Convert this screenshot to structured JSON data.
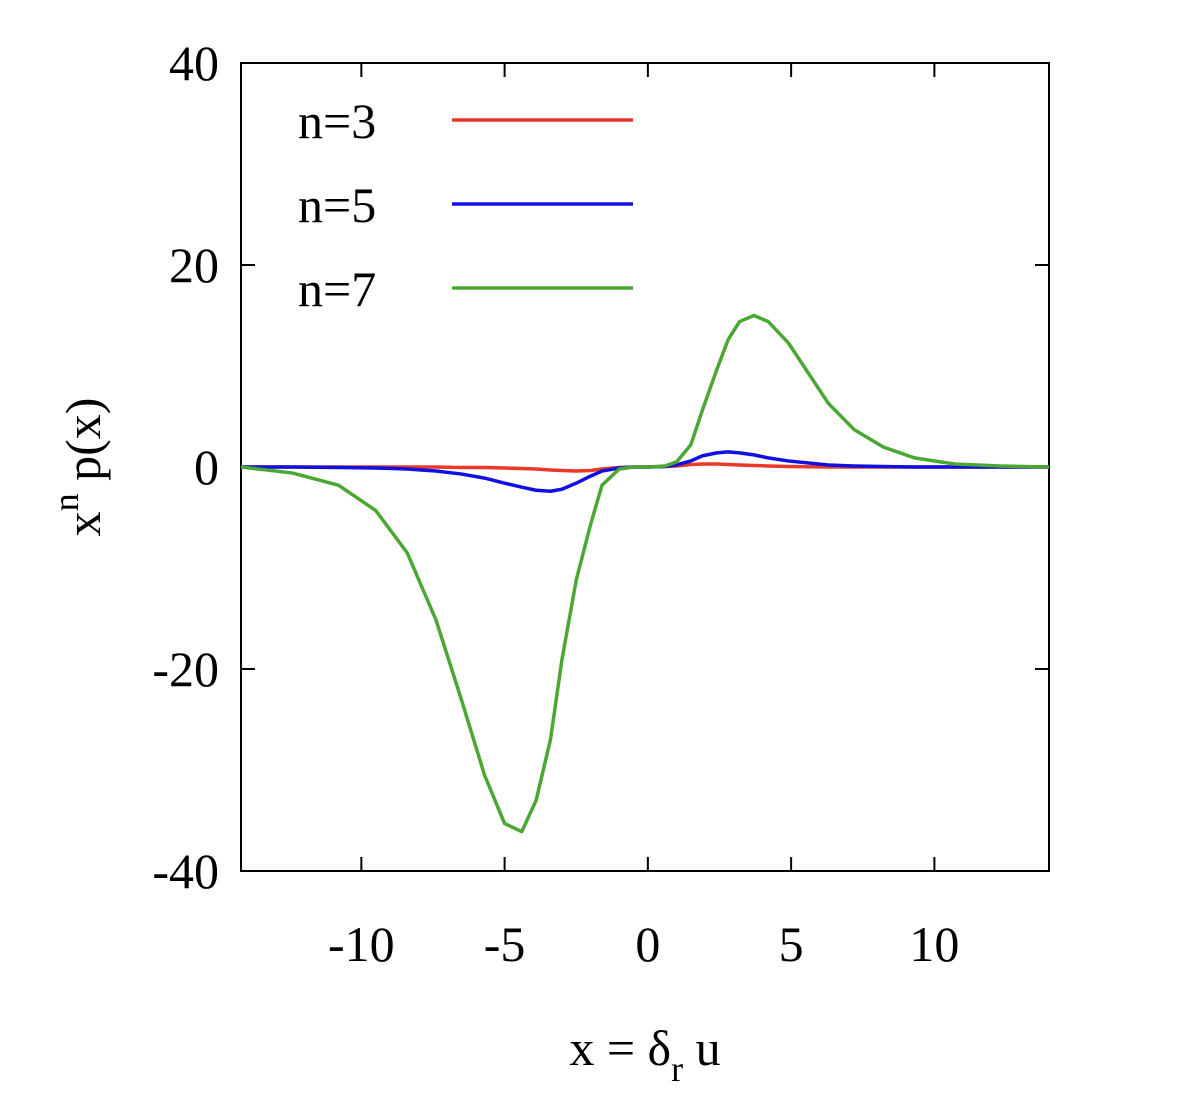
{
  "chart_data": {
    "type": "line",
    "xlabel": [
      {
        "text": "x = δ"
      },
      {
        "text": "r",
        "shift": "sub"
      },
      {
        "text": " u"
      }
    ],
    "ylabel": [
      {
        "text": "x"
      },
      {
        "text": "n",
        "shift": "super"
      },
      {
        "text": " p(x)"
      }
    ],
    "x": [
      -14.2,
      -12.4,
      -10.8,
      -9.5,
      -8.4,
      -7.4,
      -6.5,
      -5.7,
      -5.0,
      -4.4,
      -3.9,
      -3.4,
      -3.0,
      -2.5,
      -2.0,
      -1.6,
      -1.0,
      -0.5,
      0,
      0.6,
      1.0,
      1.5,
      1.9,
      2.4,
      2.8,
      3.2,
      3.7,
      4.2,
      4.9,
      6.3,
      7.2,
      8.2,
      9.3,
      10.7,
      12.3,
      14
    ],
    "series": [
      {
        "name": "n=3",
        "color": "#e8392a",
        "values": [
          0,
          0,
          0,
          0,
          0,
          0,
          -0.05,
          -0.05,
          -0.1,
          -0.15,
          -0.2,
          -0.3,
          -0.35,
          -0.4,
          -0.35,
          -0.2,
          -0.05,
          0,
          0,
          0.05,
          0.1,
          0.25,
          0.3,
          0.3,
          0.25,
          0.2,
          0.15,
          0.1,
          0.05,
          0,
          0,
          0,
          0,
          0,
          0,
          0
        ]
      },
      {
        "name": "n=5",
        "color": "#1010e0",
        "values": [
          0,
          0,
          -0.05,
          -0.1,
          -0.2,
          -0.4,
          -0.7,
          -1.1,
          -1.6,
          -2.0,
          -2.3,
          -2.4,
          -2.2,
          -1.6,
          -0.9,
          -0.4,
          -0.1,
          0,
          0,
          0.05,
          0.2,
          0.6,
          1.1,
          1.4,
          1.5,
          1.4,
          1.2,
          0.9,
          0.6,
          0.2,
          0.1,
          0.05,
          0,
          0,
          0,
          0
        ]
      },
      {
        "name": "n=7",
        "color": "#4aa832",
        "values": [
          0,
          -0.6,
          -1.8,
          -4.3,
          -8.5,
          -15.1,
          -23.1,
          -30.5,
          -35.3,
          -36.1,
          -33,
          -27,
          -19.1,
          -11.2,
          -5.7,
          -1.8,
          -0.2,
          0,
          0,
          0.1,
          0.5,
          2.2,
          5.6,
          9.6,
          12.6,
          14.4,
          15.0,
          14.4,
          12.3,
          6.3,
          3.7,
          2.0,
          0.9,
          0.3,
          0.1,
          0
        ]
      }
    ],
    "xlim": [
      -14.2,
      14
    ],
    "ylim": [
      -40,
      40
    ],
    "xticks": [
      -10,
      -5,
      0,
      5,
      10
    ],
    "yticks": [
      -40,
      -20,
      0,
      20,
      40
    ],
    "legend": "top-left"
  }
}
